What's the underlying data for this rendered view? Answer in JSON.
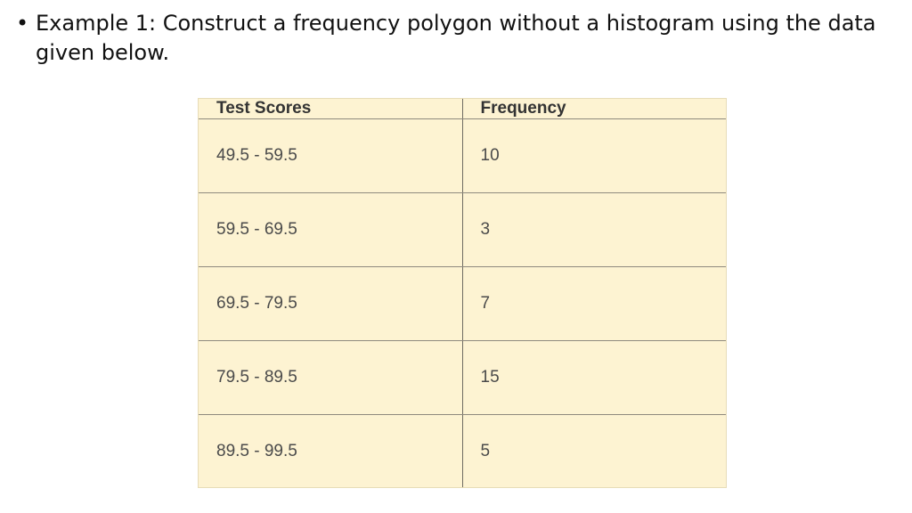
{
  "bullet": {
    "glyph": "•",
    "text": "Example 1: Construct a frequency polygon without a histogram using the data given below."
  },
  "table": {
    "headers": [
      "Test Scores",
      "Frequency"
    ],
    "rows": [
      [
        "49.5 - 59.5",
        "10"
      ],
      [
        "59.5 - 69.5",
        "3"
      ],
      [
        "69.5 - 79.5",
        "7"
      ],
      [
        "79.5 - 89.5",
        "15"
      ],
      [
        "89.5 - 99.5",
        "5"
      ]
    ],
    "colors": {
      "background": "#fdf3d2",
      "grid": "#8f8a7e"
    }
  }
}
